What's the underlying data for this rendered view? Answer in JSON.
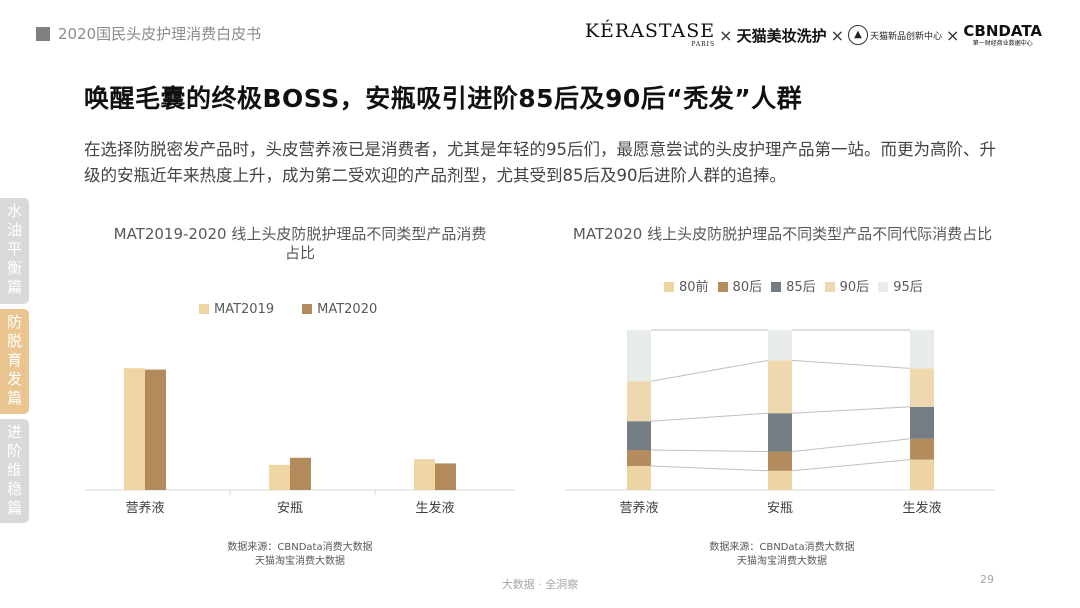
{
  "header": {
    "report_title": "2020国民头皮护理消费白皮书",
    "brands": {
      "kerastase": "KÉRASTASE",
      "kerastase_sub": "PARIS",
      "tmall_beauty": "天猫美妆洗护",
      "tmall_innovation": "天猫新品创新中心",
      "cbndata": "CBNDATA",
      "cbndata_sub": "第一财经商业数据中心",
      "separator": "×"
    }
  },
  "headline": "唤醒毛囊的终极BOSS，安瓶吸引进阶85后及90后“秃发”人群",
  "description": "在选择防脱密发产品时，头皮营养液已是消费者，尤其是年轻的95后们，最愿意尝试的头皮护理产品第一站。而更为高阶、升级的安瓶近年来热度上升，成为第二受欢迎的产品剂型，尤其受到85后及90后进阶人群的追捧。",
  "side_tabs": [
    {
      "label": "水油平衡篇",
      "active": false
    },
    {
      "label": "防脱育发篇",
      "active": true
    },
    {
      "label": "进阶维稳篇",
      "active": false
    }
  ],
  "colors": {
    "c80_pre": "#edd4a3",
    "c80": "#b48c5e",
    "c85": "#747d84",
    "c90": "#efd8b0",
    "c95": "#e7ece9",
    "mat2019": "#f0d5a4",
    "mat2020": "#b28a5c",
    "active_tab": "#ebc590",
    "inactive_tab": "#d9d9d9"
  },
  "chart_data": [
    {
      "type": "bar",
      "title": "MAT2019-2020 线上头皮防脱护理品不同类型产品消费占比",
      "categories": [
        "营养液",
        "安瓶",
        "生发液"
      ],
      "series": [
        {
          "name": "MAT2019",
          "values": [
            0.87,
            0.18,
            0.22
          ]
        },
        {
          "name": "MAT2020",
          "values": [
            0.86,
            0.23,
            0.19
          ]
        }
      ],
      "ylim": [
        0,
        1
      ],
      "grid": false,
      "legend": "top",
      "source": [
        "数据来源：CBNData消费大数据",
        "天猫淘宝消费大数据"
      ]
    },
    {
      "type": "bar",
      "stacked": true,
      "title": "MAT2020 线上头皮防脱护理品不同类型产品不同代际消费占比",
      "categories": [
        "营养液",
        "安瓶",
        "生发液"
      ],
      "series": [
        {
          "name": "80前",
          "values": [
            15,
            12,
            19
          ]
        },
        {
          "name": "80后",
          "values": [
            10,
            12,
            13
          ]
        },
        {
          "name": "85后",
          "values": [
            18,
            24,
            20
          ]
        },
        {
          "name": "90后",
          "values": [
            25,
            33,
            24
          ]
        },
        {
          "name": "95后",
          "values": [
            32,
            19,
            24
          ]
        }
      ],
      "ylim": [
        0,
        100
      ],
      "grid": false,
      "legend": "top",
      "source": [
        "数据来源：CBNData消费大数据",
        "天猫淘宝消费大数据"
      ]
    }
  ],
  "footer": {
    "tagline": "大数据 · 全洞察",
    "page_number": "29"
  }
}
